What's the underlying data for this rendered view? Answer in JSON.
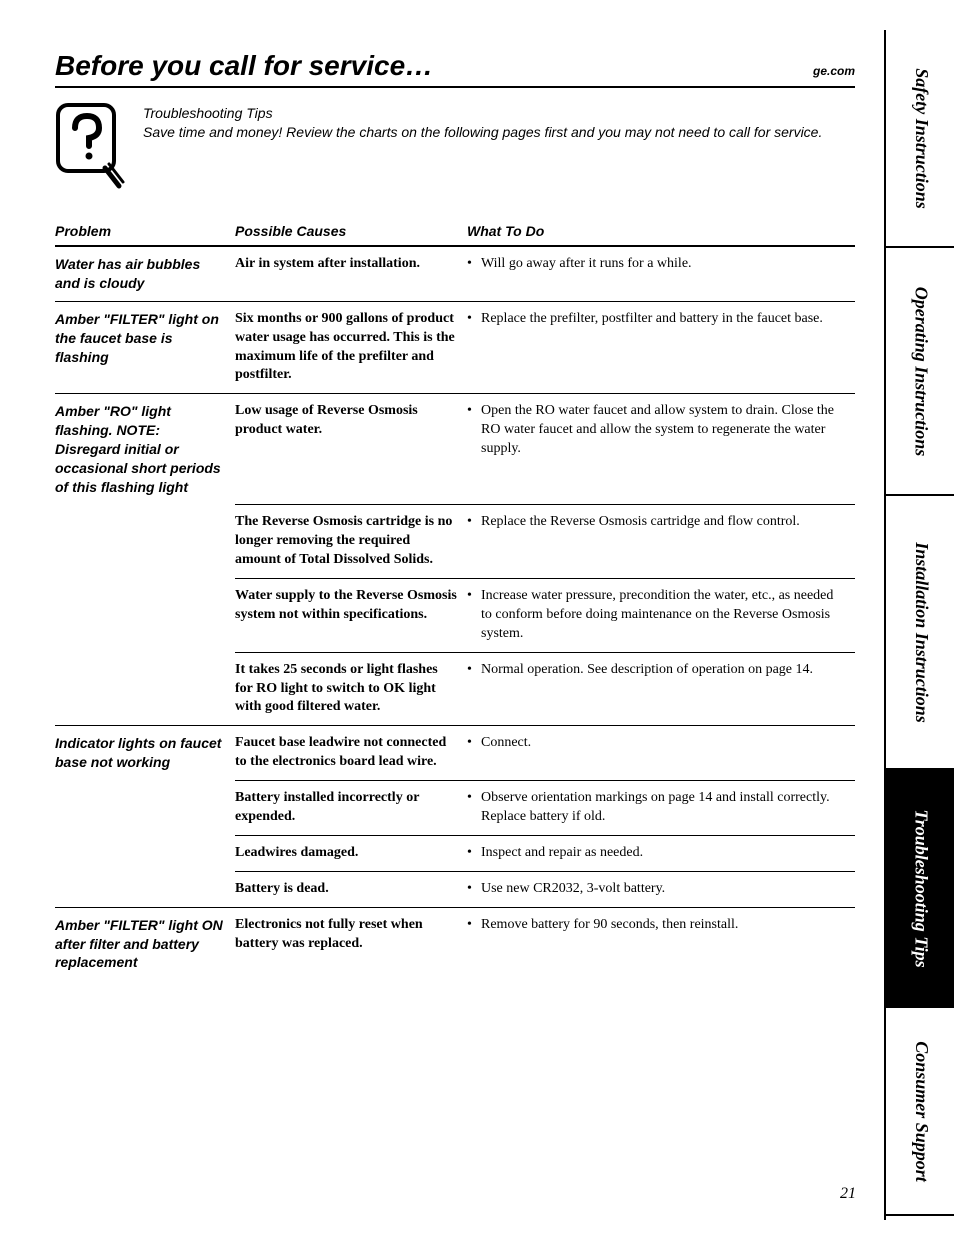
{
  "header": {
    "title": "Before you call for service…",
    "url": "ge.com"
  },
  "intro": {
    "heading": "Troubleshooting Tips",
    "body": "Save time and money! Review the charts on the following pages first and you may not need to call for service."
  },
  "columns": {
    "problem": "Problem",
    "causes": "Possible Causes",
    "what": "What To Do"
  },
  "rows": [
    {
      "problem": "Water has air bubbles and is cloudy",
      "items": [
        {
          "cause": "Air in system after installation.",
          "what": "Will go away after it runs for a while."
        }
      ]
    },
    {
      "problem": "Amber \"FILTER\" light on the faucet base is flashing",
      "items": [
        {
          "cause": "Six months or 900 gallons of product water usage has occurred. This is the maximum life of the prefilter and postfilter.",
          "what": "Replace the prefilter, postfilter and battery in the faucet base."
        }
      ]
    },
    {
      "problem": "Amber \"RO\" light flashing. NOTE: Disregard initial or occasional short periods of this flashing light",
      "items": [
        {
          "cause": "Low usage of Reverse Osmosis product water.",
          "what": "Open the RO water faucet and allow system to drain. Close the RO water faucet and allow the system to regenerate the water supply."
        },
        {
          "cause": "The Reverse Osmosis cartridge is no longer removing the required amount of Total Dissolved Solids.",
          "what": "Replace the Reverse Osmosis cartridge and flow control."
        },
        {
          "cause": "Water supply to the Reverse Osmosis system not within specifications.",
          "what": "Increase water pressure, precondition the water, etc., as needed to conform before doing maintenance on the Reverse Osmosis system."
        },
        {
          "cause": "It takes 25 seconds or light flashes for RO light to switch to OK light with good filtered water.",
          "what": "Normal operation. See description of operation on page 14."
        }
      ]
    },
    {
      "problem": "Indicator lights on faucet base not working",
      "items": [
        {
          "cause": "Faucet base leadwire not connected to the electronics board lead wire.",
          "what": "Connect."
        },
        {
          "cause": "Battery installed incorrectly or expended.",
          "what": "Observe orientation markings on page 14 and install correctly. Replace battery if old."
        },
        {
          "cause": "Leadwires damaged.",
          "what": "Inspect and repair as needed."
        },
        {
          "cause": "Battery is dead.",
          "what": "Use new CR2032, 3-volt battery."
        }
      ]
    },
    {
      "problem": "Amber \"FILTER\" light ON after filter and battery replacement",
      "items": [
        {
          "cause": "Electronics not fully reset when battery was replaced.",
          "what": "Remove battery for 90 seconds, then reinstall."
        }
      ]
    }
  ],
  "tabs": [
    {
      "label": "Safety Instructions",
      "active": false,
      "h": "h1"
    },
    {
      "label": "Operating Instructions",
      "active": false,
      "h": "h2"
    },
    {
      "label": "Installation Instructions",
      "active": false,
      "h": "h3"
    },
    {
      "label": "Troubleshooting Tips",
      "active": true,
      "h": "h4"
    },
    {
      "label": "Consumer Support",
      "active": false,
      "h": "h5"
    }
  ],
  "page_number": "21",
  "colors": {
    "text": "#000000",
    "bg": "#ffffff",
    "tab_active_bg": "#000000",
    "tab_active_text": "#ffffff"
  }
}
